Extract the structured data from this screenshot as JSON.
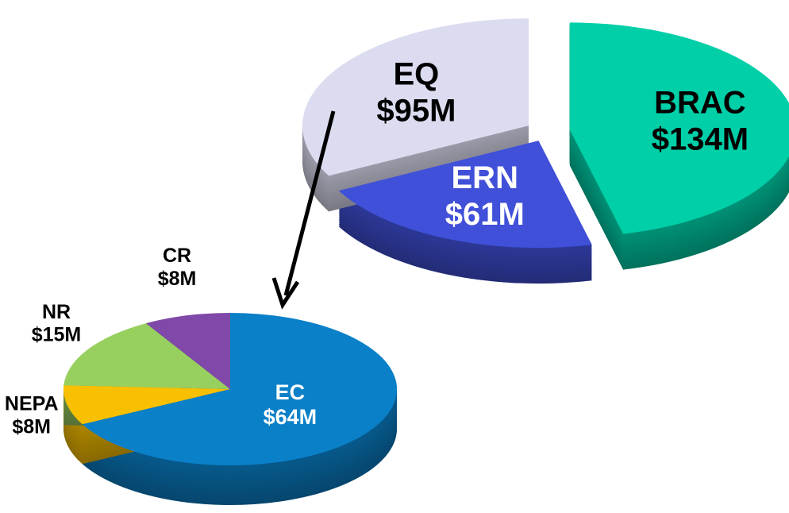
{
  "chart_data": [
    {
      "type": "pie3d",
      "categories": [
        "BRAC",
        "ERN",
        "EQ"
      ],
      "values": [
        134,
        61,
        95
      ],
      "value_labels": [
        "$134M",
        "$61M",
        "$95M"
      ],
      "colors": [
        "#00cfa8",
        "#4050d8",
        "#dcdcf0"
      ],
      "exploded": true
    },
    {
      "type": "pie3d",
      "categories": [
        "EC",
        "NEPA",
        "NR",
        "CR"
      ],
      "values": [
        64,
        8,
        15,
        8
      ],
      "value_labels": [
        "$64M",
        "$8M",
        "$15M",
        "$8M"
      ],
      "colors": [
        "#0a80c8",
        "#f8c000",
        "#98d060",
        "#8048a8"
      ],
      "exploded": false
    }
  ]
}
